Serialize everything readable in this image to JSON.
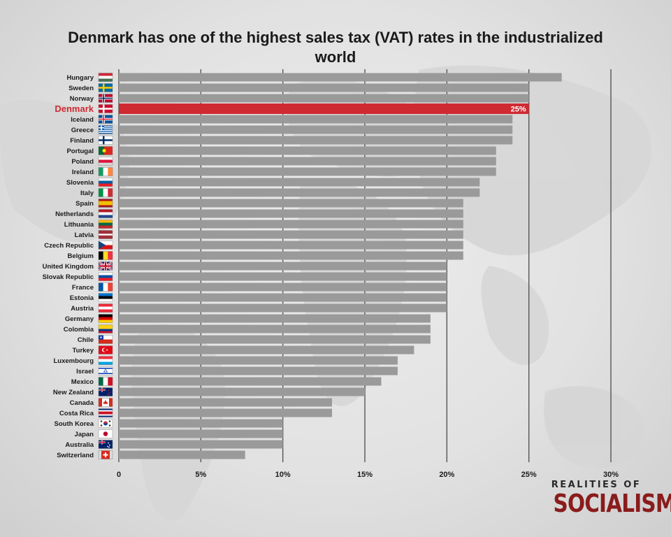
{
  "colors": {
    "bar": "#9a9a9a",
    "highlight": "#cf2a32",
    "grid": "#555555",
    "label": "#1a1a1a",
    "brand": "#8a1c1c"
  },
  "brand": {
    "top": "REALITIES OF",
    "bottom": "SOCIALISM"
  },
  "chart_data": {
    "type": "bar",
    "orientation": "horizontal",
    "title": "Denmark has one of the highest sales tax (VAT) rates in the industrialized world",
    "xlim": [
      0,
      30
    ],
    "x_ticks": [
      "0",
      "5%",
      "10%",
      "15%",
      "20%",
      "25%",
      "30%"
    ],
    "grid": true,
    "highlight": {
      "category": "Denmark",
      "label": "25%"
    },
    "categories": [
      "Hungary",
      "Sweden",
      "Norway",
      "Denmark",
      "Iceland",
      "Greece",
      "Finland",
      "Portugal",
      "Poland",
      "Ireland",
      "Slovenia",
      "Italy",
      "Spain",
      "Netherlands",
      "Lithuania",
      "Latvia",
      "Czech Republic",
      "Belgium",
      "United Kingdom",
      "Slovak Republic",
      "France",
      "Estonia",
      "Austria",
      "Germany",
      "Colombia",
      "Chile",
      "Turkey",
      "Luxembourg",
      "Israel",
      "Mexico",
      "New Zealand",
      "Canada",
      "Costa Rica",
      "South Korea",
      "Japan",
      "Australia",
      "Switzerland"
    ],
    "values": [
      27,
      25,
      25,
      25,
      24,
      24,
      24,
      23,
      23,
      23,
      22,
      22,
      21,
      21,
      21,
      21,
      21,
      21,
      20,
      20,
      20,
      20,
      20,
      19,
      19,
      19,
      18,
      17,
      17,
      16,
      15,
      13,
      13,
      10,
      10,
      10,
      7.7
    ],
    "flags": [
      "flag-hungary",
      "flag-sweden",
      "flag-norway",
      "flag-denmark",
      "flag-iceland",
      "flag-greece",
      "flag-finland",
      "flag-portugal",
      "flag-poland",
      "flag-ireland",
      "flag-slovenia",
      "flag-italy",
      "flag-spain",
      "flag-netherlands",
      "flag-lithuania",
      "flag-latvia",
      "flag-czech-republic",
      "flag-belgium",
      "flag-united-kingdom",
      "flag-slovak-republic",
      "flag-france",
      "flag-estonia",
      "flag-austria",
      "flag-germany",
      "flag-colombia",
      "flag-chile",
      "flag-turkey",
      "flag-luxembourg",
      "flag-israel",
      "flag-mexico",
      "flag-new-zealand",
      "flag-canada",
      "flag-costa-rica",
      "flag-south-korea",
      "flag-japan",
      "flag-australia",
      "flag-switzerland"
    ]
  }
}
